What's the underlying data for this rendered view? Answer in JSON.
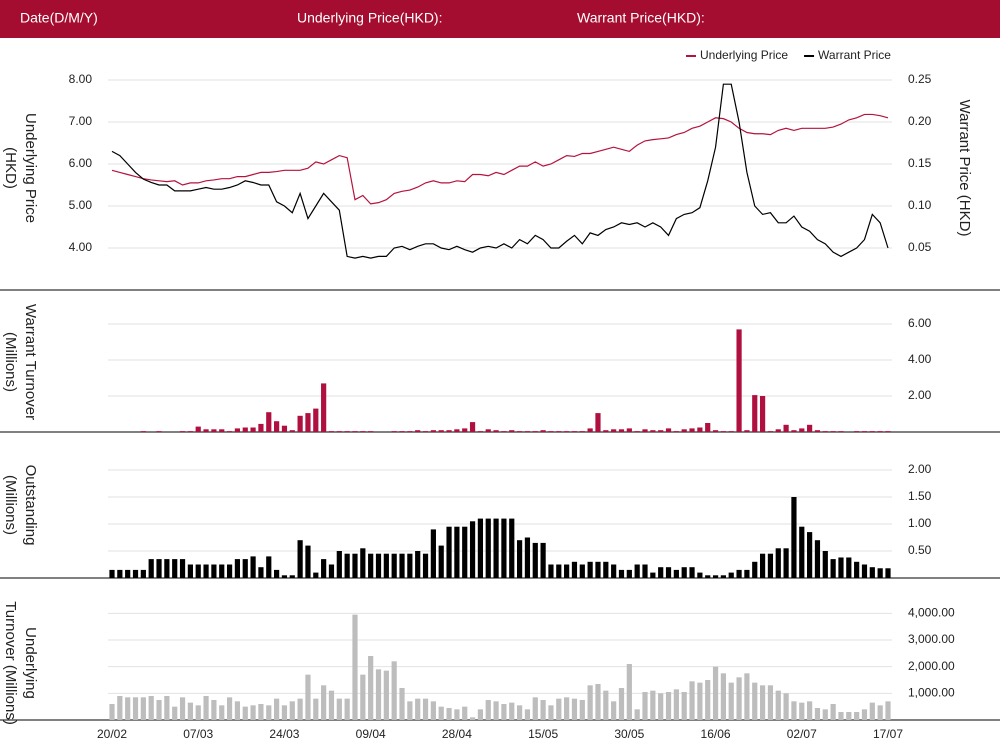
{
  "header": {
    "labels": [
      "Date(D/M/Y)",
      "Underlying Price(HKD):",
      "Warrant Price(HKD):"
    ]
  },
  "chart_data": [
    {
      "type": "line",
      "ylabel": [
        "Underlying Price",
        "(HKD)"
      ],
      "y2label": [
        "Warrant  Price (HKD)"
      ],
      "legend": "top-right",
      "grid": true,
      "ylim": [
        3.5,
        8.25
      ],
      "yticks": [
        {
          "value": 4,
          "label": "4.00"
        },
        {
          "value": 5,
          "label": "5.00"
        },
        {
          "value": 6,
          "label": "6.00"
        },
        {
          "value": 7,
          "label": "7.00"
        },
        {
          "value": 8,
          "label": "8.00"
        }
      ],
      "y2lim": [
        0.025,
        0.2625
      ],
      "y2ticks": [
        {
          "value": 0.05,
          "label": "0.05"
        },
        {
          "value": 0.1,
          "label": "0.10"
        },
        {
          "value": 0.15,
          "label": "0.15"
        },
        {
          "value": 0.2,
          "label": "0.20"
        },
        {
          "value": 0.25,
          "label": "0.25"
        }
      ],
      "series": [
        {
          "name": "Underlying Price",
          "color": "#b5123e",
          "values": [
            5.85,
            5.8,
            5.75,
            5.7,
            5.65,
            5.62,
            5.6,
            5.58,
            5.6,
            5.5,
            5.55,
            5.55,
            5.6,
            5.62,
            5.65,
            5.65,
            5.7,
            5.7,
            5.75,
            5.8,
            5.8,
            5.82,
            5.85,
            5.85,
            5.85,
            5.9,
            6.05,
            6.0,
            6.1,
            6.2,
            6.15,
            5.15,
            5.25,
            5.05,
            5.08,
            5.15,
            5.3,
            5.35,
            5.38,
            5.45,
            5.55,
            5.6,
            5.55,
            5.55,
            5.6,
            5.58,
            5.75,
            5.75,
            5.72,
            5.8,
            5.75,
            5.85,
            5.95,
            5.95,
            6.05,
            5.95,
            6.0,
            6.1,
            6.2,
            6.18,
            6.25,
            6.25,
            6.3,
            6.35,
            6.4,
            6.35,
            6.3,
            6.45,
            6.55,
            6.58,
            6.6,
            6.62,
            6.7,
            6.75,
            6.85,
            6.9,
            7.0,
            7.1,
            7.08,
            7.0,
            6.85,
            6.75,
            6.72,
            6.72,
            6.7,
            6.8,
            6.85,
            6.8,
            6.85,
            6.85,
            6.85,
            6.85,
            6.88,
            6.95,
            7.05,
            7.1,
            7.18,
            7.18,
            7.15,
            7.1
          ]
        },
        {
          "name": "Warrant Price",
          "color": "#000000",
          "axis": "y2",
          "values": [
            0.165,
            0.16,
            0.15,
            0.14,
            0.132,
            0.128,
            0.125,
            0.125,
            0.118,
            0.118,
            0.118,
            0.12,
            0.122,
            0.12,
            0.12,
            0.122,
            0.125,
            0.13,
            0.128,
            0.125,
            0.125,
            0.105,
            0.1,
            0.092,
            0.115,
            0.085,
            0.1,
            0.115,
            0.105,
            0.095,
            0.04,
            0.038,
            0.04,
            0.038,
            0.04,
            0.04,
            0.05,
            0.052,
            0.048,
            0.052,
            0.055,
            0.055,
            0.05,
            0.048,
            0.052,
            0.048,
            0.045,
            0.05,
            0.052,
            0.05,
            0.055,
            0.05,
            0.06,
            0.055,
            0.065,
            0.06,
            0.05,
            0.05,
            0.058,
            0.065,
            0.055,
            0.068,
            0.065,
            0.072,
            0.075,
            0.08,
            0.078,
            0.08,
            0.075,
            0.08,
            0.075,
            0.065,
            0.085,
            0.09,
            0.092,
            0.098,
            0.13,
            0.17,
            0.245,
            0.245,
            0.2,
            0.14,
            0.1,
            0.09,
            0.092,
            0.08,
            0.08,
            0.088,
            0.075,
            0.07,
            0.06,
            0.055,
            0.045,
            0.04,
            0.045,
            0.05,
            0.06,
            0.09,
            0.08,
            0.05
          ]
        }
      ]
    },
    {
      "type": "bar",
      "ylabel": [
        "Warrant  Turnover",
        "(Millions)"
      ],
      "color": "#b01040",
      "grid": true,
      "ylim": [
        0,
        7
      ],
      "yticks": [
        {
          "value": 2,
          "label": "2.00"
        },
        {
          "value": 4,
          "label": "4.00"
        },
        {
          "value": 6,
          "label": "6.00"
        }
      ],
      "values": [
        0,
        0,
        0,
        0,
        0.05,
        0,
        0.05,
        0,
        0,
        0.05,
        0.05,
        0.3,
        0.15,
        0.15,
        0.15,
        0.05,
        0.2,
        0.25,
        0.25,
        0.45,
        1.1,
        0.6,
        0.35,
        0.1,
        0.9,
        1.05,
        1.3,
        2.7,
        0.05,
        0.05,
        0.05,
        0.05,
        0.05,
        0.05,
        0,
        0,
        0.05,
        0.05,
        0.05,
        0.1,
        0.05,
        0.1,
        0.1,
        0.1,
        0.15,
        0.2,
        0.55,
        0.05,
        0.15,
        0.1,
        0.05,
        0.1,
        0.05,
        0.05,
        0.05,
        0.1,
        0.05,
        0.05,
        0.05,
        0.05,
        0.05,
        0.2,
        1.05,
        0.1,
        0.15,
        0.15,
        0.2,
        0.05,
        0.15,
        0.1,
        0.1,
        0.2,
        0.05,
        0.15,
        0.2,
        0.25,
        0.5,
        0.1,
        0.05,
        0.05,
        5.7,
        0.1,
        2.05,
        2.0,
        0.05,
        0.15,
        0.4,
        0.1,
        0.2,
        0.4,
        0.1,
        0.05,
        0.05,
        0.05,
        0,
        0.05,
        0.05,
        0.05,
        0.05,
        0.05
      ]
    },
    {
      "type": "bar",
      "ylabel": [
        "Outstanding",
        "(Millions)"
      ],
      "color": "#000000",
      "grid": true,
      "ylim": [
        0,
        2.25
      ],
      "yticks": [
        {
          "value": 0.5,
          "label": "0.50"
        },
        {
          "value": 1,
          "label": "1.00"
        },
        {
          "value": 1.5,
          "label": "1.50"
        },
        {
          "value": 2,
          "label": "2.00"
        }
      ],
      "values": [
        0.15,
        0.15,
        0.15,
        0.15,
        0.15,
        0.35,
        0.35,
        0.35,
        0.35,
        0.35,
        0.25,
        0.25,
        0.25,
        0.25,
        0.25,
        0.25,
        0.35,
        0.35,
        0.4,
        0.2,
        0.4,
        0.15,
        0.05,
        0.05,
        0.7,
        0.6,
        0.1,
        0.35,
        0.25,
        0.5,
        0.45,
        0.45,
        0.55,
        0.45,
        0.45,
        0.45,
        0.45,
        0.45,
        0.45,
        0.5,
        0.45,
        0.9,
        0.6,
        0.95,
        0.95,
        0.95,
        1.05,
        1.1,
        1.1,
        1.1,
        1.1,
        1.1,
        0.7,
        0.75,
        0.65,
        0.65,
        0.25,
        0.25,
        0.25,
        0.3,
        0.25,
        0.3,
        0.3,
        0.3,
        0.25,
        0.15,
        0.15,
        0.25,
        0.25,
        0.1,
        0.2,
        0.2,
        0.15,
        0.2,
        0.2,
        0.1,
        0.05,
        0.05,
        0.05,
        0.1,
        0.15,
        0.15,
        0.3,
        0.45,
        0.45,
        0.55,
        0.55,
        1.5,
        0.95,
        0.85,
        0.7,
        0.5,
        0.35,
        0.38,
        0.38,
        0.3,
        0.25,
        0.2,
        0.18,
        0.18
      ]
    },
    {
      "type": "bar",
      "ylabel": [
        "Underlying",
        "Turnover (Millions)"
      ],
      "color": "#bdbdbd",
      "grid": true,
      "ylim": [
        0,
        4500
      ],
      "yticks": [
        {
          "value": 1000,
          "label": "1,000.00"
        },
        {
          "value": 2000,
          "label": "2,000.00"
        },
        {
          "value": 3000,
          "label": "3,000.00"
        },
        {
          "value": 4000,
          "label": "4,000.00"
        }
      ],
      "categories": [
        "20/02",
        null,
        null,
        null,
        null,
        null,
        null,
        null,
        null,
        null,
        null,
        "07/03",
        null,
        null,
        null,
        null,
        null,
        null,
        null,
        null,
        null,
        null,
        "24/03",
        null,
        null,
        null,
        null,
        null,
        null,
        null,
        null,
        null,
        null,
        "09/04",
        null,
        null,
        null,
        null,
        null,
        null,
        null,
        null,
        null,
        null,
        "28/04",
        null,
        null,
        null,
        null,
        null,
        null,
        null,
        null,
        null,
        null,
        "15/05",
        null,
        null,
        null,
        null,
        null,
        null,
        null,
        null,
        null,
        null,
        "30/05",
        null,
        null,
        null,
        null,
        null,
        null,
        null,
        null,
        null,
        null,
        "16/06",
        null,
        null,
        null,
        null,
        null,
        null,
        null,
        null,
        null,
        null,
        "02/07",
        null,
        null,
        null,
        null,
        null,
        null,
        null,
        null,
        null,
        null,
        "17/07"
      ],
      "values": [
        600,
        900,
        850,
        850,
        850,
        900,
        750,
        900,
        500,
        850,
        650,
        550,
        900,
        750,
        550,
        850,
        700,
        500,
        550,
        600,
        550,
        800,
        550,
        700,
        800,
        1700,
        800,
        1300,
        1100,
        800,
        800,
        3950,
        1700,
        2400,
        1900,
        1850,
        2200,
        1200,
        700,
        800,
        800,
        700,
        500,
        450,
        400,
        500,
        100,
        400,
        750,
        700,
        600,
        650,
        550,
        400,
        850,
        750,
        550,
        800,
        850,
        800,
        750,
        1300,
        1350,
        1100,
        700,
        1200,
        2100,
        400,
        1050,
        1100,
        1000,
        1050,
        1150,
        1050,
        1450,
        1400,
        1500,
        2000,
        1750,
        1400,
        1600,
        1750,
        1400,
        1300,
        1300,
        1100,
        1000,
        700,
        650,
        700,
        450,
        400,
        600,
        300,
        300,
        300,
        400,
        650,
        550,
        700
      ]
    }
  ]
}
